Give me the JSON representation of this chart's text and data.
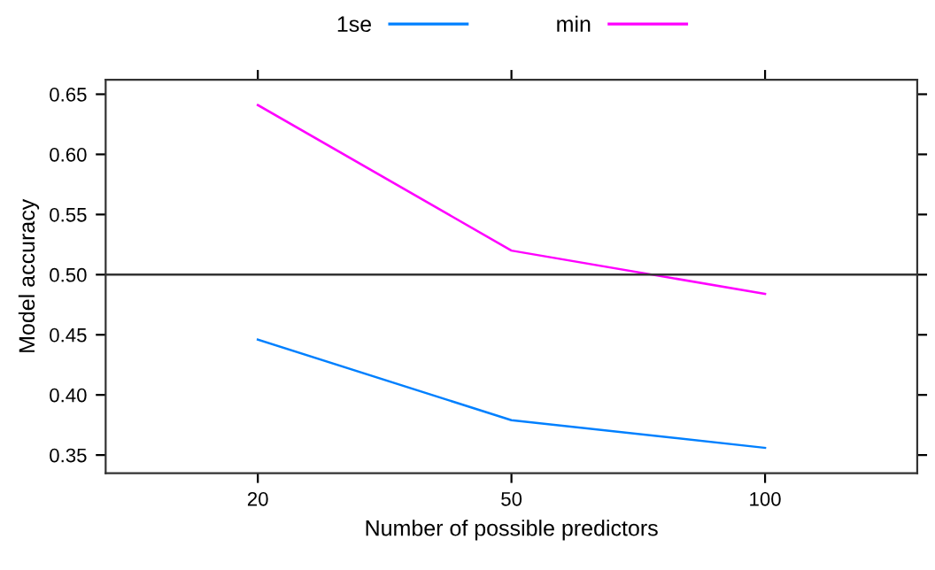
{
  "chart_data": {
    "type": "line",
    "xlabel": "Number of possible predictors",
    "ylabel": "Model accuracy",
    "categories": [
      "20",
      "50",
      "100"
    ],
    "series": [
      {
        "name": "1se",
        "color": "#0080ff",
        "values": [
          0.446,
          0.379,
          0.356
        ]
      },
      {
        "name": "min",
        "color": "#ff00ff",
        "values": [
          0.641,
          0.52,
          0.484
        ]
      }
    ],
    "ylim": [
      0.335,
      0.662
    ],
    "yticks": [
      0.35,
      {
        "value": 0.4,
        "label": "0.40"
      },
      0.45,
      {
        "value": 0.5,
        "label": "0.50"
      },
      0.55,
      {
        "value": 0.6,
        "label": "0.60"
      },
      0.65
    ],
    "ref_lines": [
      {
        "axis": "y",
        "value": 0.5,
        "color": "#333333"
      }
    ],
    "legend": "top",
    "grid": false,
    "marker": "none",
    "line_style": "solid"
  }
}
